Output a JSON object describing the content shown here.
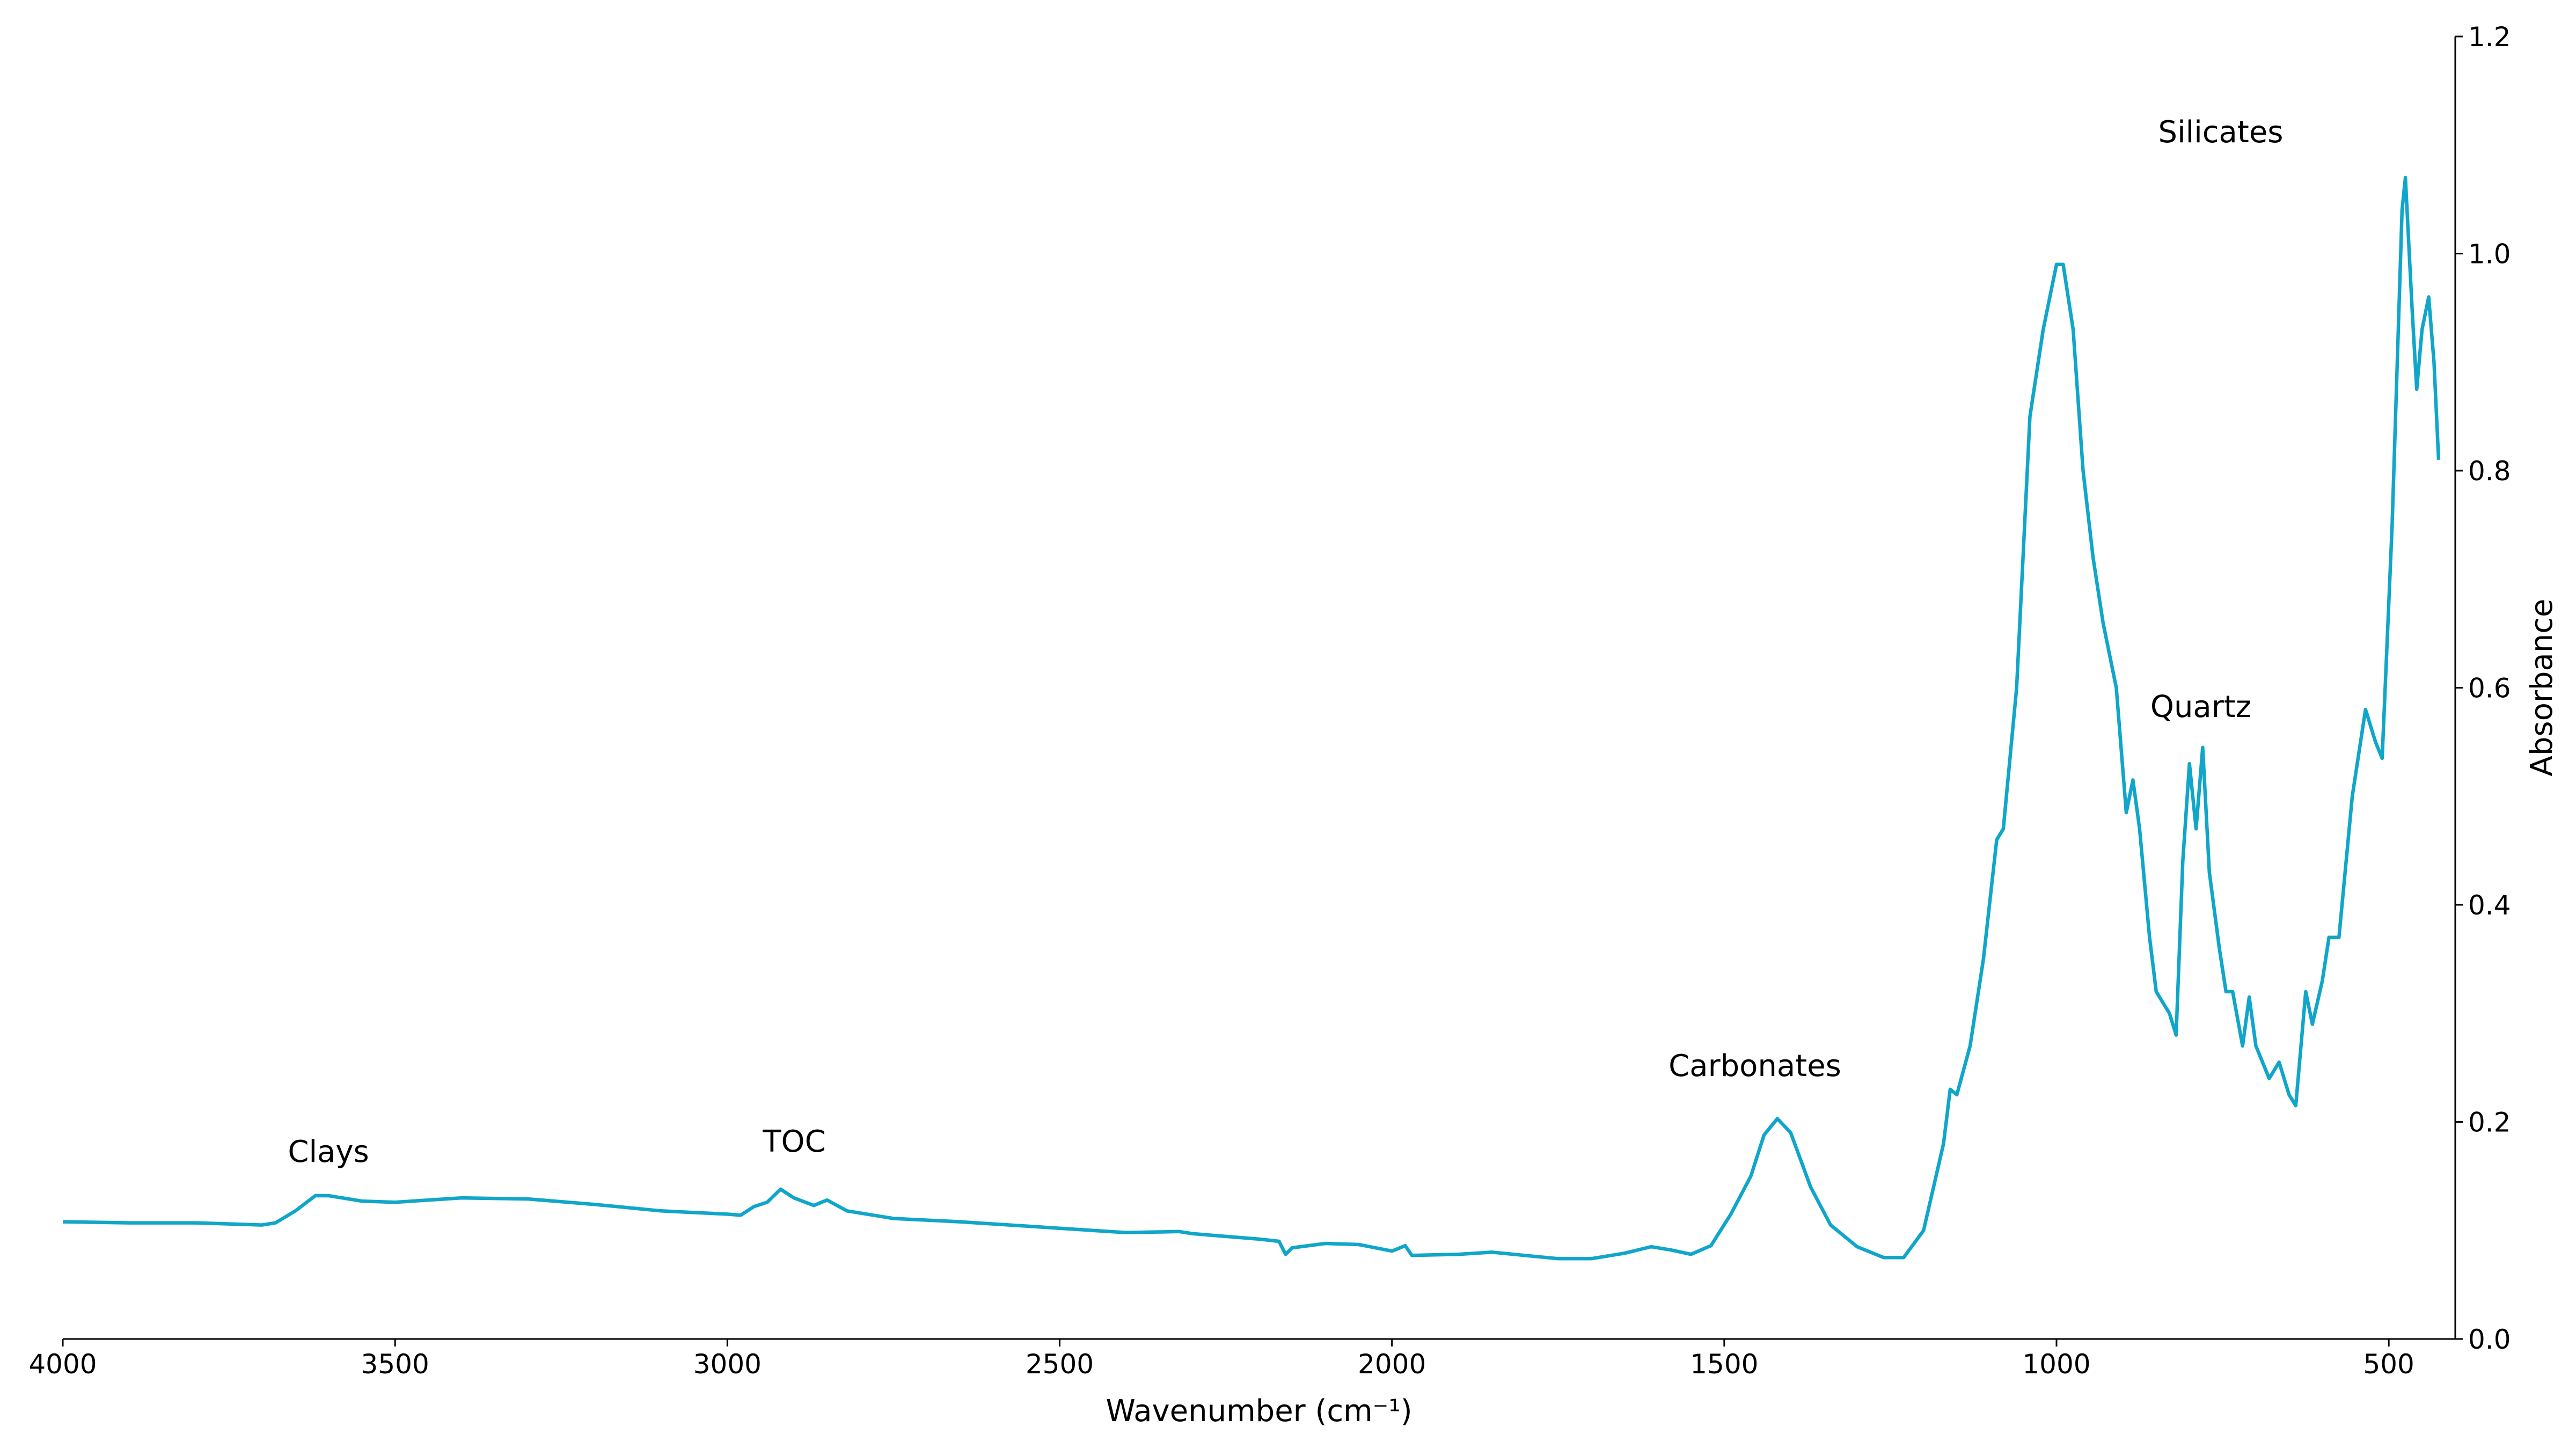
{
  "chart_data": {
    "type": "line",
    "x_label": "Wavenumber (cm⁻¹)",
    "y_label": "Absorbance",
    "color": "#10a6ca",
    "xlim": [
      4000,
      400
    ],
    "ylim": [
      0,
      1.2
    ],
    "xticks": [
      4000,
      3500,
      3000,
      2500,
      2000,
      1500,
      1000,
      500
    ],
    "yticks": [
      {
        "value": 0,
        "label": "0.0"
      },
      0.2,
      0.4,
      0.6,
      0.8,
      {
        "value": 1,
        "label": "1.0"
      },
      1.2
    ],
    "annotations": [
      "Clays",
      "TOC",
      "Carbonates",
      "Quartz",
      "Silicates"
    ],
    "x": [
      4000,
      3900,
      3800,
      3700,
      3680,
      3650,
      3620,
      3600,
      3550,
      3500,
      3400,
      3300,
      3200,
      3100,
      3000,
      2980,
      2960,
      2940,
      2920,
      2900,
      2870,
      2850,
      2820,
      2750,
      2650,
      2500,
      2400,
      2320,
      2300,
      2200,
      2170,
      2160,
      2150,
      2100,
      2050,
      2000,
      1980,
      1970,
      1900,
      1850,
      1800,
      1750,
      1700,
      1650,
      1610,
      1580,
      1550,
      1520,
      1490,
      1460,
      1440,
      1420,
      1400,
      1370,
      1340,
      1300,
      1260,
      1230,
      1200,
      1170,
      1160,
      1150,
      1130,
      1110,
      1090,
      1080,
      1060,
      1040,
      1020,
      1000,
      990,
      975,
      960,
      945,
      930,
      910,
      895,
      885,
      875,
      860,
      850,
      830,
      820,
      810,
      800,
      790,
      780,
      770,
      755,
      745,
      735,
      720,
      710,
      700,
      680,
      665,
      650,
      640,
      625,
      615,
      600,
      590,
      575,
      555,
      535,
      520,
      510,
      495,
      480,
      475,
      465,
      458,
      450,
      440,
      432,
      425
    ],
    "values": [
      0.108,
      0.107,
      0.107,
      0.105,
      0.107,
      0.118,
      0.132,
      0.132,
      0.127,
      0.126,
      0.13,
      0.129,
      0.124,
      0.118,
      0.115,
      0.114,
      0.122,
      0.126,
      0.138,
      0.13,
      0.123,
      0.128,
      0.118,
      0.111,
      0.108,
      0.102,
      0.098,
      0.099,
      0.097,
      0.092,
      0.09,
      0.078,
      0.084,
      0.088,
      0.087,
      0.081,
      0.086,
      0.077,
      0.078,
      0.08,
      0.077,
      0.074,
      0.074,
      0.079,
      0.085,
      0.082,
      0.078,
      0.086,
      0.115,
      0.15,
      0.188,
      0.203,
      0.19,
      0.14,
      0.105,
      0.085,
      0.075,
      0.075,
      0.1,
      0.18,
      0.23,
      0.225,
      0.27,
      0.35,
      0.46,
      0.47,
      0.6,
      0.85,
      0.93,
      0.99,
      0.99,
      0.93,
      0.8,
      0.72,
      0.66,
      0.6,
      0.485,
      0.515,
      0.47,
      0.37,
      0.32,
      0.3,
      0.28,
      0.44,
      0.53,
      0.47,
      0.545,
      0.43,
      0.36,
      0.32,
      0.32,
      0.27,
      0.315,
      0.27,
      0.24,
      0.255,
      0.225,
      0.215,
      0.32,
      0.29,
      0.33,
      0.37,
      0.37,
      0.5,
      0.58,
      0.55,
      0.535,
      0.75,
      1.04,
      1.07,
      0.95,
      0.875,
      0.93,
      0.96,
      0.9,
      0.81
    ]
  }
}
